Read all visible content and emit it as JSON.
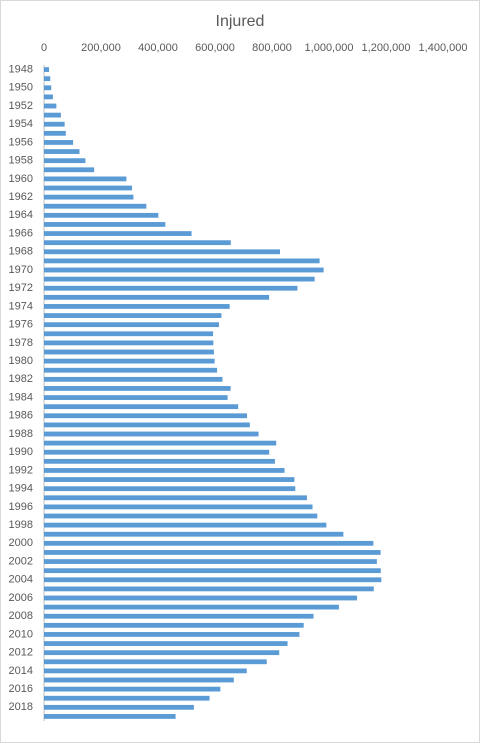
{
  "chart_data": {
    "type": "bar",
    "orientation": "horizontal",
    "title": "Injured",
    "categories": [
      "1948",
      null,
      "1950",
      null,
      "1952",
      null,
      "1954",
      null,
      "1956",
      null,
      "1958",
      null,
      "1960",
      null,
      "1962",
      null,
      "1964",
      null,
      "1966",
      null,
      "1968",
      null,
      "1970",
      null,
      "1972",
      null,
      "1974",
      null,
      "1976",
      null,
      "1978",
      null,
      "1980",
      null,
      "1982",
      null,
      "1984",
      null,
      "1986",
      null,
      "1988",
      null,
      "1990",
      null,
      "1992",
      null,
      "1994",
      null,
      "1996",
      null,
      "1998",
      null,
      "2000",
      null,
      "2002",
      null,
      "2004",
      null,
      "2006",
      null,
      "2008",
      null,
      "2010",
      null,
      "2012",
      null,
      "2014",
      null,
      "2016",
      null,
      "2018",
      null
    ],
    "values": [
      17609,
      22017,
      25450,
      31274,
      43321,
      59280,
      72390,
      76501,
      102072,
      124530,
      145432,
      175951,
      289156,
      308697,
      313813,
      359089,
      401117,
      425666,
      517775,
      655377,
      828071,
      967000,
      981096,
      949689,
      889198,
      789948,
      651420,
      622467,
      613957,
      593211,
      594116,
      596282,
      598719,
      607346,
      626192,
      654822,
      644321,
      681346,
      712330,
      722179,
      752845,
      814832,
      790295,
      810245,
      844003,
      878633,
      881723,
      922677,
      942204,
      958925,
      990676,
      1050399,
      1155707,
      1181039,
      1168029,
      1181681,
      1183617,
      1157113,
      1098564,
      1034652,
      945703,
      911215,
      896297,
      854613,
      825392,
      781494,
      711374,
      666023,
      618853,
      580850,
      525846,
      461775
    ],
    "color": "#5b9bd5",
    "xlim": [
      0,
      1400000
    ],
    "xticks": [
      0,
      {
        "value": 200000,
        "label": "200,000"
      },
      {
        "value": 400000,
        "label": "400,000"
      },
      {
        "value": 600000,
        "label": "600,000"
      },
      {
        "value": 800000,
        "label": "800,000"
      },
      {
        "value": 1000000,
        "label": "1,000,000"
      },
      {
        "value": 1200000,
        "label": "1,200,000"
      },
      {
        "value": 1400000,
        "label": "1,400,000"
      }
    ],
    "grid": false
  }
}
